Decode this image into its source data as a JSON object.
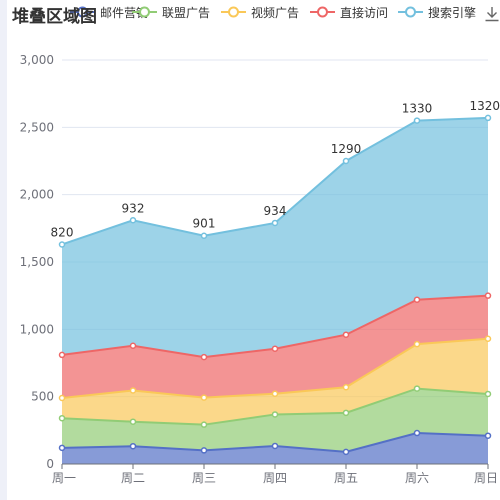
{
  "chart_data": {
    "type": "area",
    "stacked": true,
    "title": "堆叠区域图",
    "categories": [
      "周一",
      "周二",
      "周三",
      "周四",
      "周五",
      "周六",
      "周日"
    ],
    "series": [
      {
        "name": "邮件营销",
        "values": [
          120,
          132,
          101,
          134,
          90,
          230,
          210
        ],
        "color": "#5470c6"
      },
      {
        "name": "联盟广告",
        "values": [
          220,
          182,
          191,
          234,
          290,
          330,
          310
        ],
        "color": "#91cc75"
      },
      {
        "name": "视频广告",
        "values": [
          150,
          232,
          201,
          154,
          190,
          330,
          410
        ],
        "color": "#fac858"
      },
      {
        "name": "直接访问",
        "values": [
          320,
          332,
          301,
          334,
          390,
          330,
          320
        ],
        "color": "#ee6666"
      },
      {
        "name": "搜索引擎",
        "values": [
          820,
          932,
          901,
          934,
          1290,
          1330,
          1320
        ],
        "color": "#73c0de"
      }
    ],
    "top_labels": [
      "820",
      "932",
      "901",
      "934",
      "1290",
      "1330",
      "1320"
    ],
    "y_ticks": [
      "0",
      "500",
      "1,000",
      "1,500",
      "2,000",
      "2,500",
      "3,000"
    ],
    "ylim": [
      0,
      3000
    ],
    "grid": true,
    "legend_position": "top"
  },
  "toolbox": {
    "icon": "download-icon"
  }
}
